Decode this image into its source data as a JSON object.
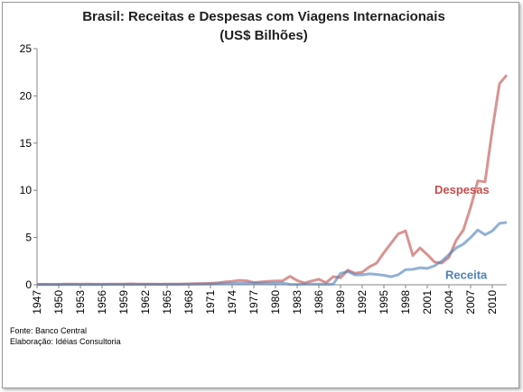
{
  "chart_data": {
    "type": "line",
    "title": "Brasil: Receitas e Despesas com Viagens Internacionais",
    "subtitle": "(US$ Bilhões)",
    "ylim": [
      0,
      25
    ],
    "yticks": [
      0,
      5,
      10,
      15,
      20,
      25
    ],
    "xlim": [
      1947,
      2012
    ],
    "xticks": [
      1947,
      1950,
      1953,
      1956,
      1959,
      1962,
      1965,
      1968,
      1971,
      1974,
      1977,
      1980,
      1983,
      1986,
      1989,
      1992,
      1995,
      1998,
      2001,
      2004,
      2007,
      2010
    ],
    "grid": false,
    "series": [
      {
        "name": "Despesas",
        "color": "#c0504d",
        "points": [
          [
            1947,
            0.05
          ],
          [
            1948,
            0.05
          ],
          [
            1949,
            0.04
          ],
          [
            1950,
            0.05
          ],
          [
            1951,
            0.07
          ],
          [
            1952,
            0.08
          ],
          [
            1953,
            0.06
          ],
          [
            1954,
            0.07
          ],
          [
            1955,
            0.06
          ],
          [
            1956,
            0.06
          ],
          [
            1957,
            0.07
          ],
          [
            1958,
            0.08
          ],
          [
            1959,
            0.08
          ],
          [
            1960,
            0.1
          ],
          [
            1961,
            0.08
          ],
          [
            1962,
            0.07
          ],
          [
            1963,
            0.07
          ],
          [
            1964,
            0.06
          ],
          [
            1965,
            0.07
          ],
          [
            1966,
            0.08
          ],
          [
            1967,
            0.08
          ],
          [
            1968,
            0.1
          ],
          [
            1969,
            0.11
          ],
          [
            1970,
            0.13
          ],
          [
            1971,
            0.15
          ],
          [
            1972,
            0.2
          ],
          [
            1973,
            0.3
          ],
          [
            1974,
            0.36
          ],
          [
            1975,
            0.47
          ],
          [
            1976,
            0.42
          ],
          [
            1977,
            0.24
          ],
          [
            1978,
            0.3
          ],
          [
            1979,
            0.35
          ],
          [
            1980,
            0.4
          ],
          [
            1981,
            0.42
          ],
          [
            1982,
            0.9
          ],
          [
            1983,
            0.45
          ],
          [
            1984,
            0.18
          ],
          [
            1985,
            0.4
          ],
          [
            1986,
            0.58
          ],
          [
            1987,
            0.22
          ],
          [
            1988,
            0.86
          ],
          [
            1989,
            0.75
          ],
          [
            1990,
            1.55
          ],
          [
            1991,
            1.22
          ],
          [
            1992,
            1.33
          ],
          [
            1993,
            1.9
          ],
          [
            1994,
            2.3
          ],
          [
            1995,
            3.4
          ],
          [
            1996,
            4.4
          ],
          [
            1997,
            5.4
          ],
          [
            1998,
            5.7
          ],
          [
            1999,
            3.1
          ],
          [
            2000,
            3.9
          ],
          [
            2001,
            3.2
          ],
          [
            2002,
            2.4
          ],
          [
            2003,
            2.3
          ],
          [
            2004,
            2.9
          ],
          [
            2005,
            4.7
          ],
          [
            2006,
            5.8
          ],
          [
            2007,
            8.2
          ],
          [
            2008,
            11.0
          ],
          [
            2009,
            10.9
          ],
          [
            2010,
            16.4
          ],
          [
            2011,
            21.3
          ],
          [
            2012,
            22.2
          ]
        ]
      },
      {
        "name": "Receita",
        "color": "#4f81bd",
        "points": [
          [
            1947,
            0.03
          ],
          [
            1950,
            0.03
          ],
          [
            1955,
            0.03
          ],
          [
            1960,
            0.04
          ],
          [
            1965,
            0.05
          ],
          [
            1968,
            0.06
          ],
          [
            1970,
            0.08
          ],
          [
            1972,
            0.1
          ],
          [
            1974,
            0.13
          ],
          [
            1976,
            0.16
          ],
          [
            1978,
            0.16
          ],
          [
            1980,
            0.15
          ],
          [
            1981,
            0.17
          ],
          [
            1982,
            0.05
          ],
          [
            1983,
            0.04
          ],
          [
            1984,
            0.08
          ],
          [
            1985,
            0.08
          ],
          [
            1986,
            0.07
          ],
          [
            1987,
            0.06
          ],
          [
            1988,
            0.08
          ],
          [
            1989,
            1.2
          ],
          [
            1990,
            1.4
          ],
          [
            1991,
            1.05
          ],
          [
            1992,
            1.05
          ],
          [
            1993,
            1.15
          ],
          [
            1994,
            1.1
          ],
          [
            1995,
            1.0
          ],
          [
            1996,
            0.85
          ],
          [
            1997,
            1.07
          ],
          [
            1998,
            1.6
          ],
          [
            1999,
            1.63
          ],
          [
            2000,
            1.8
          ],
          [
            2001,
            1.73
          ],
          [
            2002,
            2.0
          ],
          [
            2003,
            2.5
          ],
          [
            2004,
            3.2
          ],
          [
            2005,
            3.9
          ],
          [
            2006,
            4.3
          ],
          [
            2007,
            5.0
          ],
          [
            2008,
            5.8
          ],
          [
            2009,
            5.3
          ],
          [
            2010,
            5.7
          ],
          [
            2011,
            6.5
          ],
          [
            2012,
            6.6
          ]
        ]
      }
    ],
    "legend_labels": [
      {
        "name": "Despesas",
        "color": "#c0504d",
        "anchor": [
          2002,
          10
        ]
      },
      {
        "name": "Receita",
        "color": "#4f81bd",
        "anchor": [
          2003.5,
          1
        ]
      }
    ],
    "notes": [
      "Fonte: Banco Central",
      "Elaboração: Idéias Consultoria"
    ]
  }
}
